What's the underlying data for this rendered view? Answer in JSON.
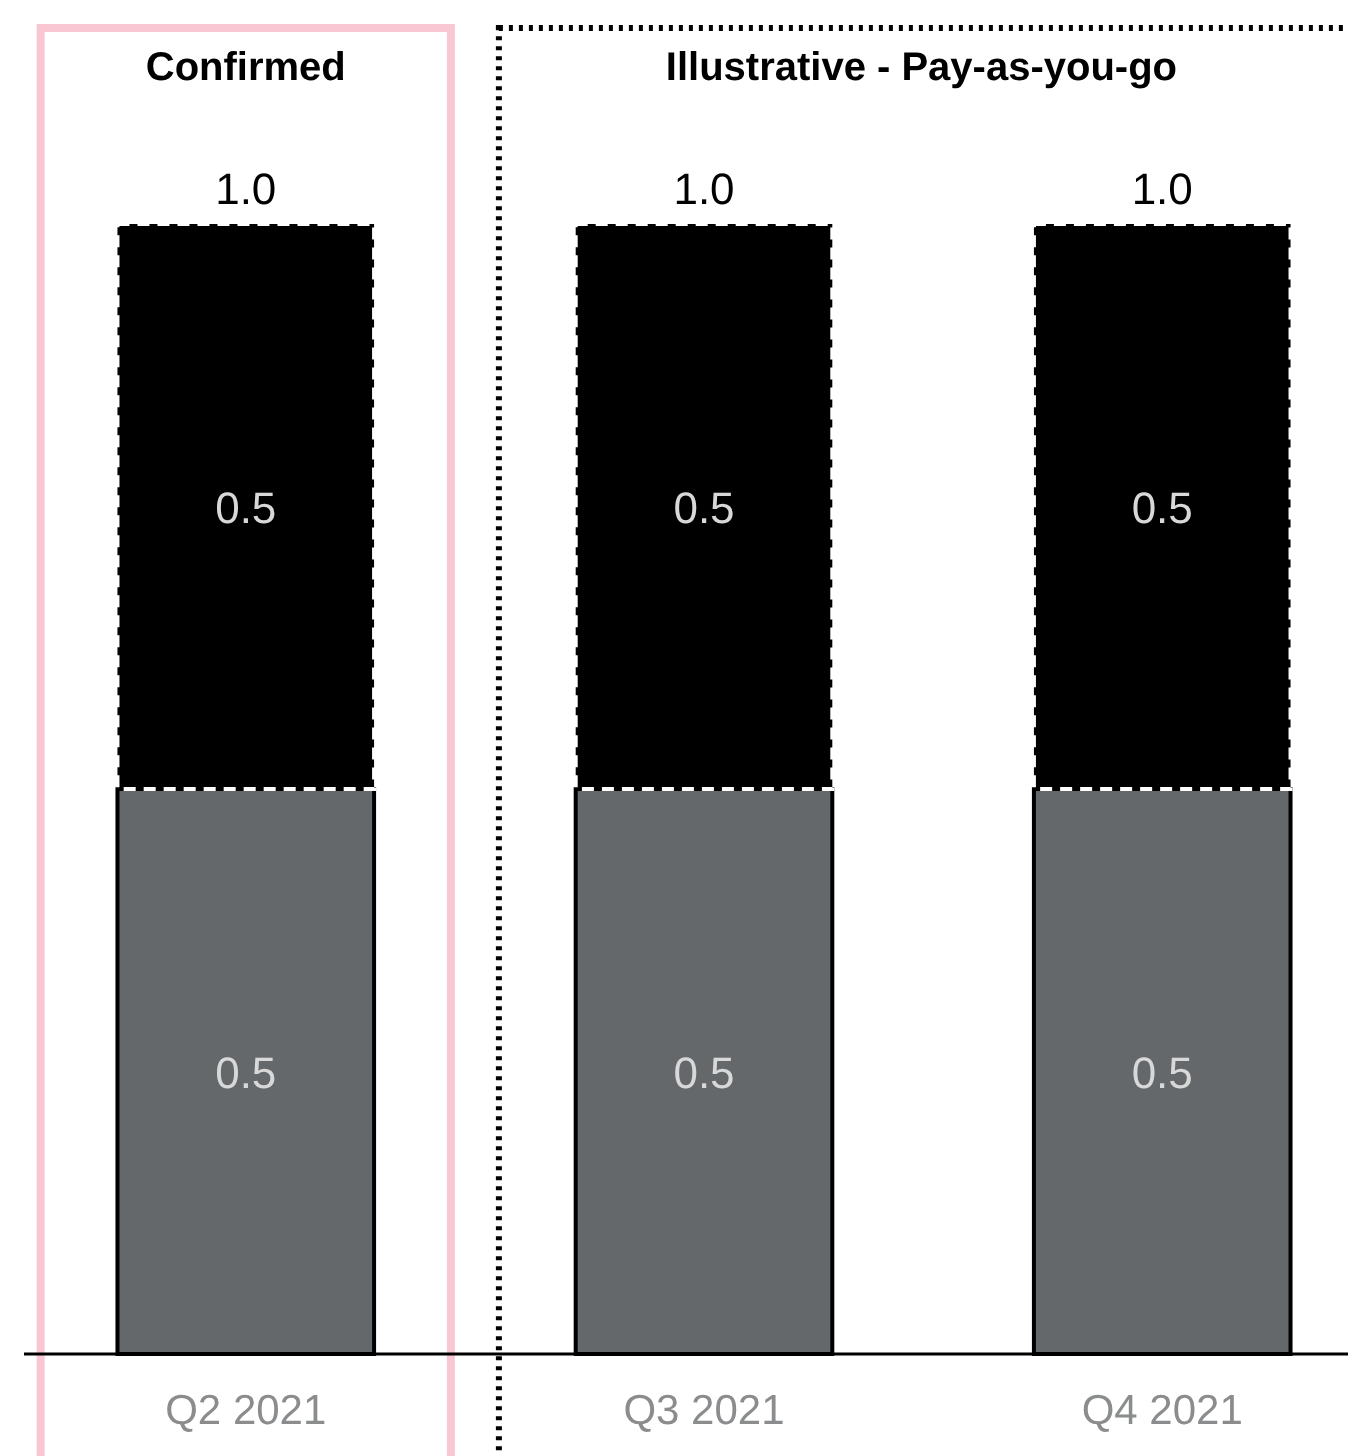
{
  "chart_data": {
    "type": "bar",
    "stacked": true,
    "categories": [
      "Q2 2021",
      "Q3 2021",
      "Q4 2021"
    ],
    "series": [
      {
        "color": "#65686a",
        "values": [
          0.5,
          0.5,
          0.5
        ]
      },
      {
        "color": "#000000",
        "values": [
          0.5,
          0.5,
          0.5
        ],
        "line_style": "dashed"
      }
    ],
    "data_labels": true,
    "totals": [
      "1.0",
      "1.0",
      "1.0"
    ],
    "annotations": [
      "Confirmed",
      "Illustrative - Pay-as-you-go"
    ]
  }
}
